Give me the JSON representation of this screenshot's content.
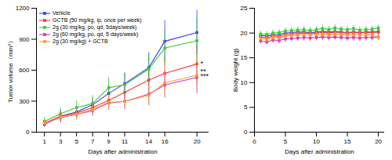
{
  "chart_data": [
    {
      "type": "line",
      "xlabel": "Days after administration",
      "ylabel": "Tumor volume（mm³）",
      "x": [
        1,
        3,
        5,
        7,
        9,
        11,
        14,
        16,
        20
      ],
      "series": [
        {
          "name": "Vehicle",
          "color": "#3636FF",
          "values": [
            75,
            155,
            195,
            265,
            375,
            470,
            625,
            880,
            965
          ],
          "errors": [
            28,
            58,
            55,
            65,
            80,
            105,
            145,
            200,
            215
          ]
        },
        {
          "name": "GCTB (50 mg/kg, ip, once per week)",
          "color": "#FF3636",
          "values": [
            90,
            155,
            185,
            238,
            308,
            385,
            505,
            570,
            660
          ],
          "errors": [
            33,
            52,
            52,
            62,
            72,
            88,
            125,
            155,
            195
          ]
        },
        {
          "name": "2g (30 mg/kg, po, qd, 5days/week)",
          "color": "#36CC36",
          "values": [
            105,
            178,
            238,
            278,
            430,
            460,
            610,
            815,
            885
          ],
          "errors": [
            38,
            62,
            68,
            78,
            98,
            108,
            148,
            175,
            215
          ]
        },
        {
          "name": "2g (60 mg/kg, po, qd, 5 days/week)",
          "color": "#CC36CC",
          "values": [
            82,
            142,
            172,
            210,
            282,
            298,
            368,
            458,
            530
          ],
          "errors": [
            28,
            52,
            52,
            58,
            68,
            78,
            108,
            128,
            158
          ]
        },
        {
          "name": "2g (30 mg/kg) + GCTB",
          "color": "#FF9933",
          "values": [
            88,
            148,
            172,
            218,
            288,
            298,
            358,
            478,
            550
          ],
          "errors": [
            30,
            50,
            48,
            55,
            65,
            72,
            102,
            118,
            152
          ]
        }
      ],
      "annotations": [
        {
          "text": "*",
          "x": 20.4,
          "y": 660
        },
        {
          "text": "**",
          "x": 20.4,
          "y": 590
        },
        {
          "text": "***",
          "x": 20.4,
          "y": 545
        }
      ],
      "xlim": [
        0,
        21.5
      ],
      "xticks": [
        1,
        3,
        5,
        7,
        9,
        11,
        14,
        16,
        20
      ],
      "ylim": [
        0,
        1200
      ],
      "yticks": [
        0,
        300,
        600,
        900,
        1200
      ],
      "legend": "upper left",
      "marker": "square",
      "grid": false
    },
    {
      "type": "line",
      "xlabel": "Days after administration",
      "ylabel": "Body weight (g)",
      "x": [
        1,
        2,
        3,
        4,
        5,
        6,
        7,
        8,
        9,
        10,
        11,
        12,
        13,
        14,
        15,
        16,
        17,
        18,
        19,
        20
      ],
      "series": [
        {
          "color": "#3636FF",
          "values": [
            19.5,
            19.4,
            19.6,
            19.7,
            20.0,
            20.1,
            20.2,
            20.2,
            20.1,
            20.2,
            20.3,
            20.2,
            20.3,
            20.2,
            20.1,
            20.2,
            20.1,
            20.2,
            20.2,
            20.3
          ],
          "errors": [
            0.55,
            0.55,
            0.55,
            0.55,
            0.55,
            0.55,
            0.55,
            0.55,
            0.55,
            0.55,
            0.55,
            0.55,
            0.55,
            0.55,
            0.55,
            0.55,
            0.55,
            0.55,
            0.55,
            0.55
          ]
        },
        {
          "color": "#FF3636",
          "values": [
            19.2,
            19.0,
            19.4,
            19.3,
            19.7,
            19.8,
            19.9,
            20.0,
            19.9,
            20.0,
            20.1,
            20.0,
            20.2,
            20.1,
            20.0,
            20.1,
            20.0,
            20.1,
            20.1,
            20.2
          ],
          "errors": [
            0.6,
            0.6,
            0.6,
            0.6,
            0.6,
            0.6,
            0.6,
            0.6,
            0.6,
            0.6,
            0.6,
            0.6,
            0.6,
            0.6,
            0.6,
            0.6,
            0.6,
            0.6,
            0.6,
            0.6
          ]
        },
        {
          "color": "#36CC36",
          "values": [
            19.8,
            19.7,
            20.0,
            20.1,
            20.4,
            20.5,
            20.6,
            20.7,
            20.5,
            20.7,
            20.9,
            20.7,
            21.0,
            20.8,
            20.7,
            20.9,
            20.6,
            20.7,
            20.8,
            21.0
          ],
          "errors": [
            0.65,
            0.65,
            0.65,
            0.65,
            0.65,
            0.65,
            0.65,
            0.65,
            0.65,
            0.65,
            0.65,
            0.65,
            0.65,
            0.65,
            0.65,
            0.65,
            0.65,
            0.65,
            0.65,
            0.65
          ]
        },
        {
          "color": "#CC36CC",
          "values": [
            18.4,
            18.2,
            18.6,
            18.5,
            18.8,
            18.9,
            19.0,
            19.1,
            19.0,
            19.1,
            19.2,
            19.1,
            19.2,
            19.1,
            19.0,
            19.1,
            19.0,
            19.1,
            19.1,
            19.2
          ],
          "errors": [
            0.7,
            0.7,
            0.7,
            0.7,
            0.7,
            0.7,
            0.7,
            0.7,
            0.7,
            0.7,
            0.7,
            0.7,
            0.7,
            0.7,
            0.7,
            0.7,
            0.7,
            0.7,
            0.7,
            0.7
          ]
        },
        {
          "color": "#FF9933",
          "values": [
            18.9,
            18.7,
            19.1,
            19.0,
            19.4,
            19.5,
            19.6,
            19.7,
            19.6,
            19.7,
            19.7,
            19.6,
            19.8,
            19.7,
            19.6,
            19.7,
            19.5,
            19.6,
            19.6,
            19.1
          ],
          "errors": [
            0.65,
            0.65,
            0.65,
            0.65,
            0.65,
            0.65,
            0.65,
            0.65,
            0.65,
            0.65,
            0.65,
            0.65,
            0.65,
            0.65,
            0.65,
            0.65,
            0.65,
            0.65,
            0.65,
            0.65
          ]
        }
      ],
      "xlim": [
        0,
        21
      ],
      "xticks": [
        0,
        5,
        10,
        15,
        20
      ],
      "ylim": [
        0,
        25
      ],
      "yticks": [
        0,
        5,
        10,
        15,
        20,
        25
      ],
      "marker": "square",
      "grid": false
    }
  ]
}
